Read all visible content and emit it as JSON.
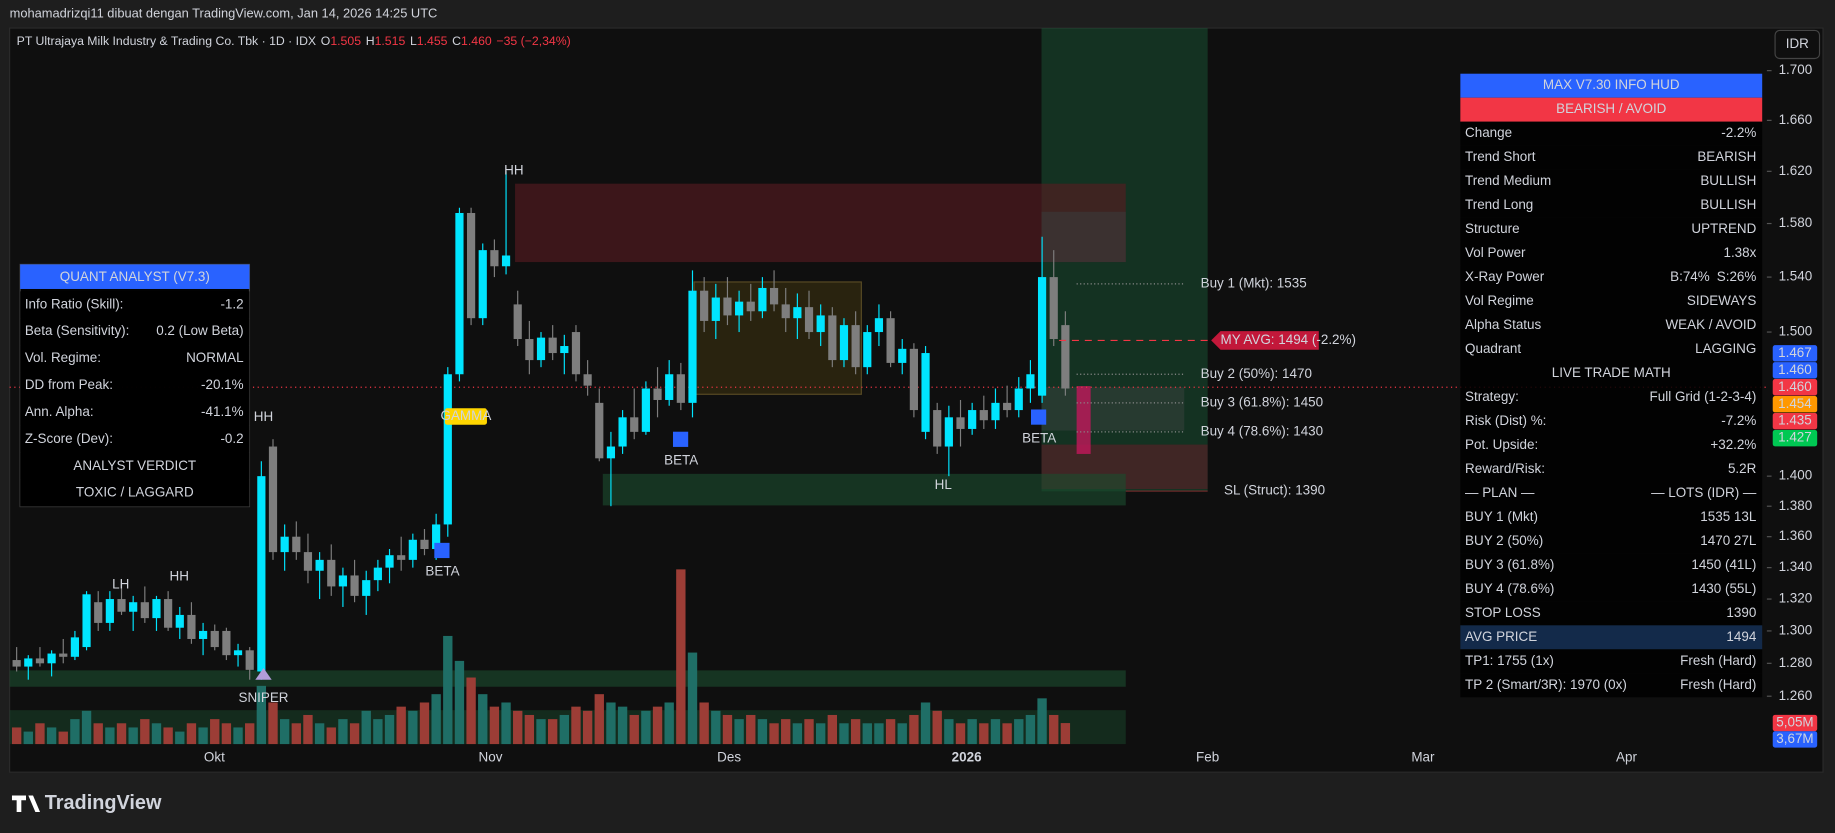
{
  "header": {
    "caption": "mohamadrizqi11 dibuat dengan TradingView.com, Jan 14, 2026 14:25 UTC",
    "currency": "IDR",
    "logo": "TradingView"
  },
  "legend": {
    "symbol": "PT Ultrajaya Milk Industry & Trading Co. Tbk · 1D · IDX",
    "ohlc": [
      {
        "key": "O",
        "text": "1.505"
      },
      {
        "key": "H",
        "text": "1.515"
      },
      {
        "key": "L",
        "text": "1.455"
      },
      {
        "key": "C",
        "text": "1.460"
      }
    ],
    "change": "−35 (−2,34%)"
  },
  "chart_data": {
    "type": "candlestick",
    "log_scale": true,
    "up_color": "#00e5ff",
    "down_color": "#7e7e7e",
    "volume_up_color": "#1f6e66",
    "volume_down_color": "#9c3d36",
    "ylim": [
      1215,
      1735
    ],
    "yticks": [
      {
        "value": 1700,
        "label": "1.700"
      },
      {
        "value": 1660,
        "label": "1.660"
      },
      {
        "value": 1620,
        "label": "1.620"
      },
      {
        "value": 1580,
        "label": "1.580"
      },
      {
        "value": 1540,
        "label": "1.540"
      },
      {
        "value": 1500,
        "label": "1.500"
      },
      {
        "value": 1400,
        "label": "1.400"
      },
      {
        "value": 1380,
        "label": "1.380"
      },
      {
        "value": 1360,
        "label": "1.360"
      },
      {
        "value": 1340,
        "label": "1.340"
      },
      {
        "value": 1320,
        "label": "1.320"
      },
      {
        "value": 1300,
        "label": "1.300"
      },
      {
        "value": 1280,
        "label": "1.280"
      },
      {
        "value": 1260,
        "label": "1.260"
      }
    ],
    "x_labels": [
      "Okt",
      "Nov",
      "Des",
      "2026",
      "Feb",
      "Mar",
      "Apr"
    ],
    "open": [
      1282,
      1278,
      1283,
      1280,
      1286,
      1284,
      1290,
      1318,
      1305,
      1320,
      1312,
      1318,
      1308,
      1320,
      1302,
      1310,
      1295,
      1300,
      1300,
      1285,
      1288,
      1275,
      1420,
      1350,
      1360,
      1350,
      1338,
      1345,
      1328,
      1335,
      1322,
      1332,
      1340,
      1348,
      1345,
      1358,
      1352,
      1368,
      1470,
      1588,
      1510,
      1560,
      1548,
      1520,
      1495,
      1480,
      1496,
      1485,
      1500,
      1470,
      1450,
      1412,
      1420,
      1440,
      1430,
      1460,
      1452,
      1470,
      1450,
      1530,
      1508,
      1525,
      1512,
      1522,
      1515,
      1532,
      1520,
      1510,
      1518,
      1500,
      1512,
      1480,
      1505,
      1475,
      1500,
      1510,
      1478,
      1488,
      1430,
      1445,
      1420,
      1440,
      1432,
      1445,
      1438,
      1450,
      1445,
      1460,
      1455,
      1540,
      1505
    ],
    "high": [
      1290,
      1285,
      1290,
      1288,
      1295,
      1300,
      1325,
      1325,
      1325,
      1330,
      1322,
      1328,
      1322,
      1325,
      1315,
      1318,
      1305,
      1304,
      1302,
      1292,
      1290,
      1410,
      1425,
      1368,
      1370,
      1362,
      1350,
      1355,
      1340,
      1345,
      1338,
      1345,
      1352,
      1360,
      1362,
      1365,
      1375,
      1475,
      1592,
      1592,
      1565,
      1568,
      1620,
      1530,
      1508,
      1500,
      1505,
      1498,
      1505,
      1480,
      1460,
      1430,
      1445,
      1460,
      1465,
      1475,
      1480,
      1478,
      1545,
      1540,
      1535,
      1540,
      1530,
      1535,
      1540,
      1545,
      1532,
      1528,
      1530,
      1520,
      1518,
      1510,
      1515,
      1505,
      1520,
      1515,
      1495,
      1492,
      1490,
      1450,
      1448,
      1452,
      1450,
      1455,
      1460,
      1462,
      1468,
      1480,
      1570,
      1560,
      1515
    ],
    "low": [
      1275,
      1270,
      1278,
      1272,
      1280,
      1282,
      1288,
      1300,
      1300,
      1310,
      1300,
      1305,
      1300,
      1300,
      1295,
      1292,
      1285,
      1288,
      1282,
      1278,
      1270,
      1270,
      1345,
      1338,
      1345,
      1330,
      1320,
      1322,
      1315,
      1318,
      1310,
      1325,
      1330,
      1338,
      1340,
      1348,
      1345,
      1360,
      1465,
      1505,
      1505,
      1540,
      1542,
      1490,
      1470,
      1475,
      1480,
      1470,
      1465,
      1455,
      1410,
      1380,
      1415,
      1425,
      1428,
      1440,
      1448,
      1445,
      1440,
      1500,
      1495,
      1505,
      1500,
      1508,
      1510,
      1515,
      1500,
      1495,
      1495,
      1490,
      1475,
      1475,
      1470,
      1470,
      1490,
      1475,
      1470,
      1440,
      1425,
      1415,
      1400,
      1420,
      1428,
      1432,
      1432,
      1440,
      1440,
      1450,
      1450,
      1490,
      1455
    ],
    "close": [
      1278,
      1283,
      1280,
      1286,
      1284,
      1296,
      1323,
      1305,
      1320,
      1312,
      1318,
      1308,
      1320,
      1302,
      1310,
      1295,
      1300,
      1290,
      1285,
      1288,
      1276,
      1400,
      1350,
      1360,
      1350,
      1338,
      1345,
      1328,
      1335,
      1322,
      1332,
      1340,
      1348,
      1345,
      1358,
      1352,
      1368,
      1470,
      1588,
      1510,
      1560,
      1548,
      1556,
      1495,
      1480,
      1496,
      1485,
      1490,
      1470,
      1462,
      1412,
      1420,
      1440,
      1430,
      1460,
      1452,
      1470,
      1450,
      1530,
      1508,
      1525,
      1512,
      1522,
      1515,
      1532,
      1520,
      1510,
      1518,
      1500,
      1512,
      1480,
      1505,
      1475,
      1500,
      1510,
      1478,
      1488,
      1445,
      1485,
      1420,
      1440,
      1432,
      1445,
      1438,
      1450,
      1445,
      1460,
      1470,
      1540,
      1495,
      1460
    ],
    "volume": [
      4,
      3,
      5,
      4,
      3,
      6,
      8,
      5,
      4,
      5,
      4,
      6,
      5,
      4,
      3,
      5,
      4,
      6,
      5,
      4,
      5,
      14,
      10,
      6,
      5,
      7,
      5,
      4,
      6,
      5,
      8,
      6,
      7,
      9,
      8,
      10,
      12,
      26,
      20,
      16,
      12,
      9,
      10,
      8,
      7,
      6,
      6,
      7,
      9,
      8,
      12,
      10,
      9,
      7,
      8,
      9,
      10,
      42,
      22,
      10,
      8,
      7,
      6,
      7,
      6,
      5,
      6,
      5,
      6,
      5,
      7,
      5,
      6,
      5,
      5,
      6,
      5,
      7,
      10,
      8,
      6,
      5,
      6,
      5,
      6,
      5,
      6,
      7,
      11,
      7,
      5.05
    ],
    "vlim": [
      0,
      45
    ],
    "price_badges": [
      {
        "value": 1467,
        "label": "1.467",
        "color": "#2962ff"
      },
      {
        "value": 1460,
        "label": "1.460",
        "color": "#2962ff"
      },
      {
        "value": 1460,
        "label": "1.460",
        "color": "#f23645"
      },
      {
        "value": 1454,
        "label": "1.454",
        "color": "#ff9800"
      },
      {
        "value": 1435,
        "label": "1.435",
        "color": "#f23645"
      },
      {
        "value": 1427,
        "label": "1.427",
        "color": "#00c853"
      }
    ],
    "volume_badges": [
      {
        "value": 5.05,
        "label": "5,05M",
        "color": "#f23645"
      },
      {
        "value": 3.67,
        "label": "3,67M",
        "color": "#2962ff"
      }
    ],
    "levels": [
      {
        "label": "Buy 1 (Mkt): 1535",
        "value": 1535,
        "color": "#ffffff"
      },
      {
        "label": "MY AVG: 1494 (-2.2%)",
        "value": 1494,
        "color": "#f23645"
      },
      {
        "label": "Buy 2 (50%): 1470",
        "value": 1470,
        "color": "#ffffff"
      },
      {
        "label": "Buy 3 (61.8%): 1450",
        "value": 1450,
        "color": "#ffffff"
      },
      {
        "label": "Buy 4 (78.6%): 1430",
        "value": 1430,
        "color": "#ff9800"
      },
      {
        "label": "SL (Struct): 1390",
        "value": 1390,
        "color": "#f23645"
      }
    ],
    "markers": [
      "GAMMA",
      "BETA",
      "BETA",
      "BETA",
      "SNIPER",
      "HH",
      "HH",
      "LH",
      "HH",
      "HL"
    ]
  },
  "hud": {
    "rows": [
      {
        "bg": "#2962ff",
        "cells": [
          {
            "text": "MAX V7.30 INFO HUD",
            "color": "#ffffff"
          }
        ]
      },
      {
        "bg": "#f23645",
        "cells": [
          {
            "text": "BEARISH / AVOID",
            "color": "#ffffff"
          }
        ]
      },
      {
        "cells": [
          {
            "text": "Change",
            "color": "#ffffff"
          },
          {
            "text": "-2.2%",
            "color": "#f23645"
          }
        ]
      },
      {
        "cells": [
          {
            "text": "Trend Short",
            "color": "#ffffff"
          },
          {
            "text": "BEARISH",
            "color": "#f23645"
          }
        ]
      },
      {
        "cells": [
          {
            "text": "Trend Medium",
            "color": "#ffffff"
          },
          {
            "text": "BULLISH",
            "color": "#00e676"
          }
        ]
      },
      {
        "cells": [
          {
            "text": "Trend Long",
            "color": "#ffffff"
          },
          {
            "text": "BULLISH",
            "color": "#00e676"
          }
        ]
      },
      {
        "cells": [
          {
            "text": "Structure",
            "color": "#ffffff"
          },
          {
            "text": "UPTREND",
            "color": "#00e676"
          }
        ]
      },
      {
        "cells": [
          {
            "text": "Vol Power",
            "color": "#ffffff"
          },
          {
            "text": "1.38x",
            "color": "#00e676"
          }
        ]
      },
      {
        "cells": [
          {
            "text": "X-Ray Power",
            "color": "#ffffff"
          },
          {
            "text": "B:74%",
            "color": "#29b6f6"
          },
          {
            "text": "S:26%",
            "color": "#f23645"
          }
        ]
      },
      {
        "cells": [
          {
            "text": "Vol Regime",
            "color": "#ffffff"
          },
          {
            "text": "SIDEWAYS",
            "color": "#ffd600"
          }
        ]
      },
      {
        "cells": [
          {
            "text": "Alpha Status",
            "color": "#ffffff"
          },
          {
            "text": "WEAK / AVOID",
            "color": "#f23645"
          }
        ]
      },
      {
        "cells": [
          {
            "text": "Quadrant",
            "color": "#ffffff"
          },
          {
            "text": "LAGGING",
            "color": "#f23645"
          }
        ]
      },
      {
        "cells": [
          {
            "text": "LIVE TRADE MATH",
            "color": "#00e5ff"
          }
        ]
      },
      {
        "cells": [
          {
            "text": "Strategy:",
            "color": "#ffffff"
          },
          {
            "text": "Full Grid (1-2-3-4)",
            "color": "#ffd600"
          }
        ]
      },
      {
        "cells": [
          {
            "text": "Risk (Dist) %:",
            "color": "#ffffff"
          },
          {
            "text": "-7.2%",
            "color": "#f23645"
          }
        ]
      },
      {
        "cells": [
          {
            "text": "Pot. Upside:",
            "color": "#ffffff"
          },
          {
            "text": "+32.2%",
            "color": "#00e676"
          }
        ]
      },
      {
        "cells": [
          {
            "text": "Reward/Risk:",
            "color": "#ffffff"
          },
          {
            "text": "5.2R",
            "color": "#00e676"
          }
        ]
      },
      {
        "cells": [
          {
            "text": "— PLAN —",
            "color": "#8a8a8a"
          },
          {
            "text": "— LOTS (IDR) —",
            "color": "#8a8a8a"
          }
        ]
      },
      {
        "cells": [
          {
            "text": "BUY 1 (Mkt)",
            "color": "#00e676"
          },
          {
            "text": "1535 13L",
            "color": "#ffffff"
          }
        ]
      },
      {
        "cells": [
          {
            "text": "BUY 2 (50%)",
            "color": "#00e676"
          },
          {
            "text": "1470 27L",
            "color": "#ffffff"
          }
        ]
      },
      {
        "cells": [
          {
            "text": "BUY 3 (61.8%)",
            "color": "#00e676"
          },
          {
            "text": "1450 (41L)",
            "color": "#8a8a8a"
          }
        ]
      },
      {
        "cells": [
          {
            "text": "BUY 4 (78.6%)",
            "color": "#ff9800"
          },
          {
            "text": "1430 (55L)",
            "color": "#8a8a8a"
          }
        ]
      },
      {
        "cells": [
          {
            "text": "STOP LOSS",
            "color": "#f23645"
          },
          {
            "text": "1390",
            "color": "#f23645"
          }
        ]
      },
      {
        "bg": "#132a4a",
        "cells": [
          {
            "text": "AVG PRICE",
            "color": "#29b6f6"
          },
          {
            "text": "1494",
            "color": "#ffffff"
          }
        ]
      },
      {
        "cells": [
          {
            "text": "TP1: 1755 (1x)",
            "color": "#ffffff"
          },
          {
            "text": "Fresh (Hard)",
            "color": "#ffd600"
          }
        ]
      },
      {
        "cells": [
          {
            "text": "TP 2 (Smart/3R): 1970 (0x)",
            "color": "#ffffff"
          },
          {
            "text": "Fresh (Hard)",
            "color": "#ffd600"
          }
        ]
      }
    ]
  },
  "quant": {
    "title": "QUANT ANALYST (V7.3)",
    "rows": [
      {
        "cells": [
          {
            "text": "Info Ratio (Skill):",
            "color": "#9a9a9a"
          },
          {
            "text": "-1.2",
            "color": "#9a9a9a"
          }
        ]
      },
      {
        "cells": [
          {
            "text": "Beta (Sensitivity):",
            "color": "#9a9a9a"
          },
          {
            "text": "0.2 (Low Beta)",
            "color": "#00e676"
          }
        ]
      },
      {
        "cells": [
          {
            "text": "Vol. Regime:",
            "color": "#9a9a9a"
          },
          {
            "text": "NORMAL",
            "color": "#9a9a9a"
          }
        ]
      },
      {
        "cells": [
          {
            "text": "DD from Peak:",
            "color": "#9a9a9a"
          },
          {
            "text": "-20.1%",
            "color": "#ffd600"
          }
        ]
      },
      {
        "cells": [
          {
            "text": "Ann. Alpha:",
            "color": "#9a9a9a"
          },
          {
            "text": "-41.1%",
            "color": "#f23645"
          }
        ]
      },
      {
        "cells": [
          {
            "text": "Z-Score (Dev):",
            "color": "#9a9a9a"
          },
          {
            "text": "-0.2",
            "color": "#9a9a9a"
          }
        ]
      },
      {
        "cells": [
          {
            "text": "ANALYST VERDICT",
            "color": "#ffd600"
          }
        ]
      },
      {
        "cells": [
          {
            "text": "TOXIC / LAGGARD",
            "color": "#f23645"
          }
        ]
      }
    ]
  }
}
